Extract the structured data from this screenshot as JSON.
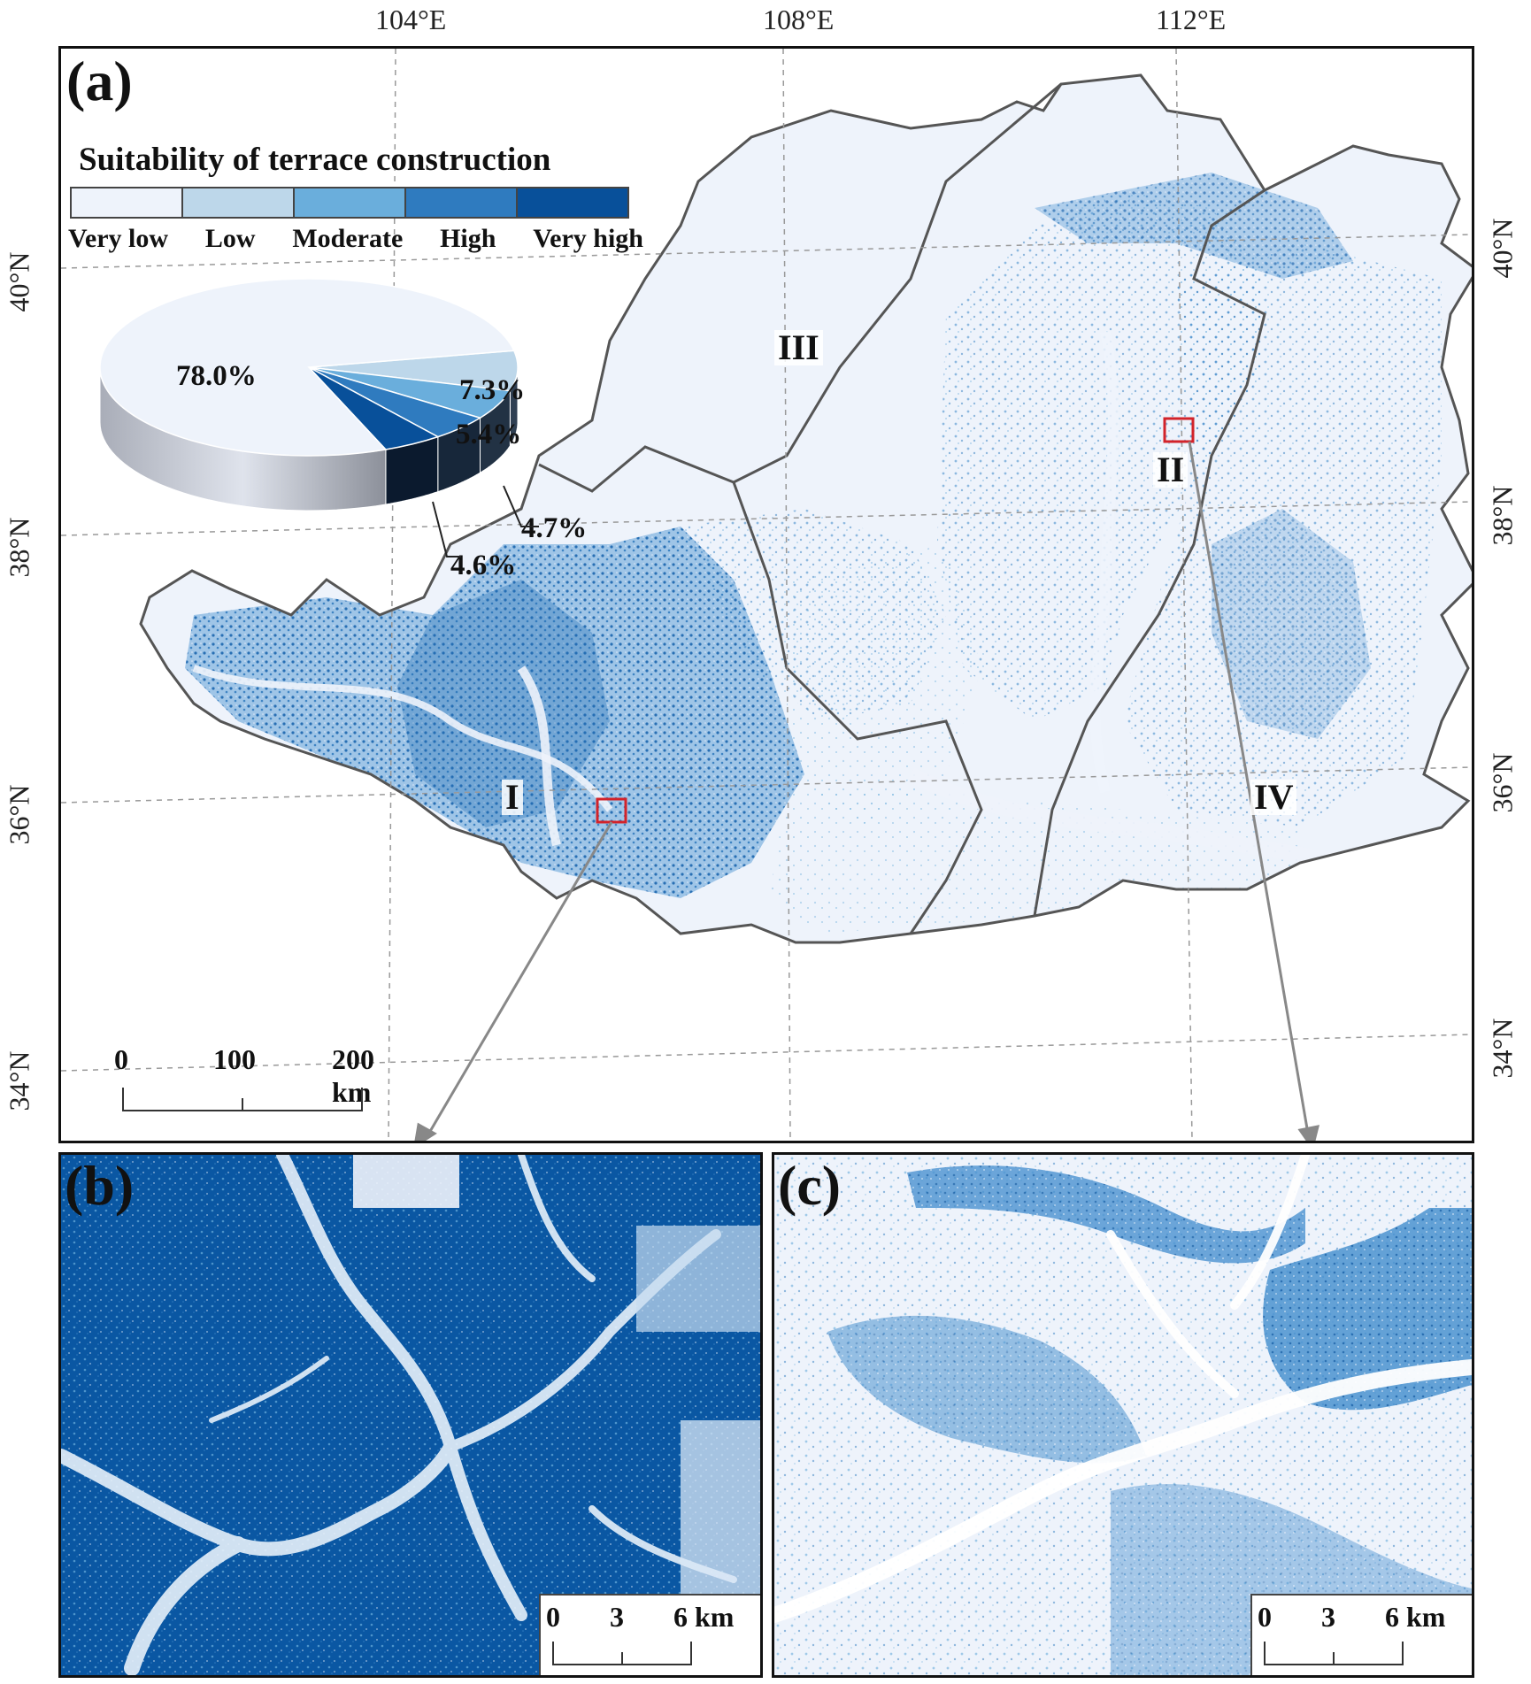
{
  "panels": {
    "a": "(a)",
    "b": "(b)",
    "c": "(c)"
  },
  "legend": {
    "title": "Suitability of terrace construction",
    "classes": [
      {
        "label": "Very low",
        "color": "#eef3fb"
      },
      {
        "label": "Low",
        "color": "#bdd7ea"
      },
      {
        "label": "Moderate",
        "color": "#6aaedc"
      },
      {
        "label": "High",
        "color": "#2f7bbf"
      },
      {
        "label": "Very high",
        "color": "#08509a"
      }
    ]
  },
  "pie": {
    "values": [
      {
        "class": "Very low",
        "percent": 78.0,
        "label": "78.0%"
      },
      {
        "class": "Low",
        "percent": 7.3,
        "label": "7.3%"
      },
      {
        "class": "Moderate",
        "percent": 5.4,
        "label": "5.4%"
      },
      {
        "class": "High",
        "percent": 4.7,
        "label": "4.7%"
      },
      {
        "class": "Very high",
        "percent": 4.6,
        "label": "4.6%"
      }
    ]
  },
  "graticule": {
    "top": [
      "104°E",
      "108°E",
      "112°E"
    ],
    "left": [
      "40°N",
      "38°N",
      "36°N",
      "34°N"
    ],
    "right": [
      "40°N",
      "38°N",
      "36°N",
      "34°N"
    ]
  },
  "regions": [
    "I",
    "II",
    "III",
    "IV"
  ],
  "scales": {
    "main": {
      "ticks": [
        "0",
        "100",
        "200 km"
      ]
    },
    "b": {
      "ticks": [
        "0",
        "3",
        "6 km"
      ]
    },
    "c": {
      "ticks": [
        "0",
        "3",
        "6 km"
      ]
    }
  }
}
